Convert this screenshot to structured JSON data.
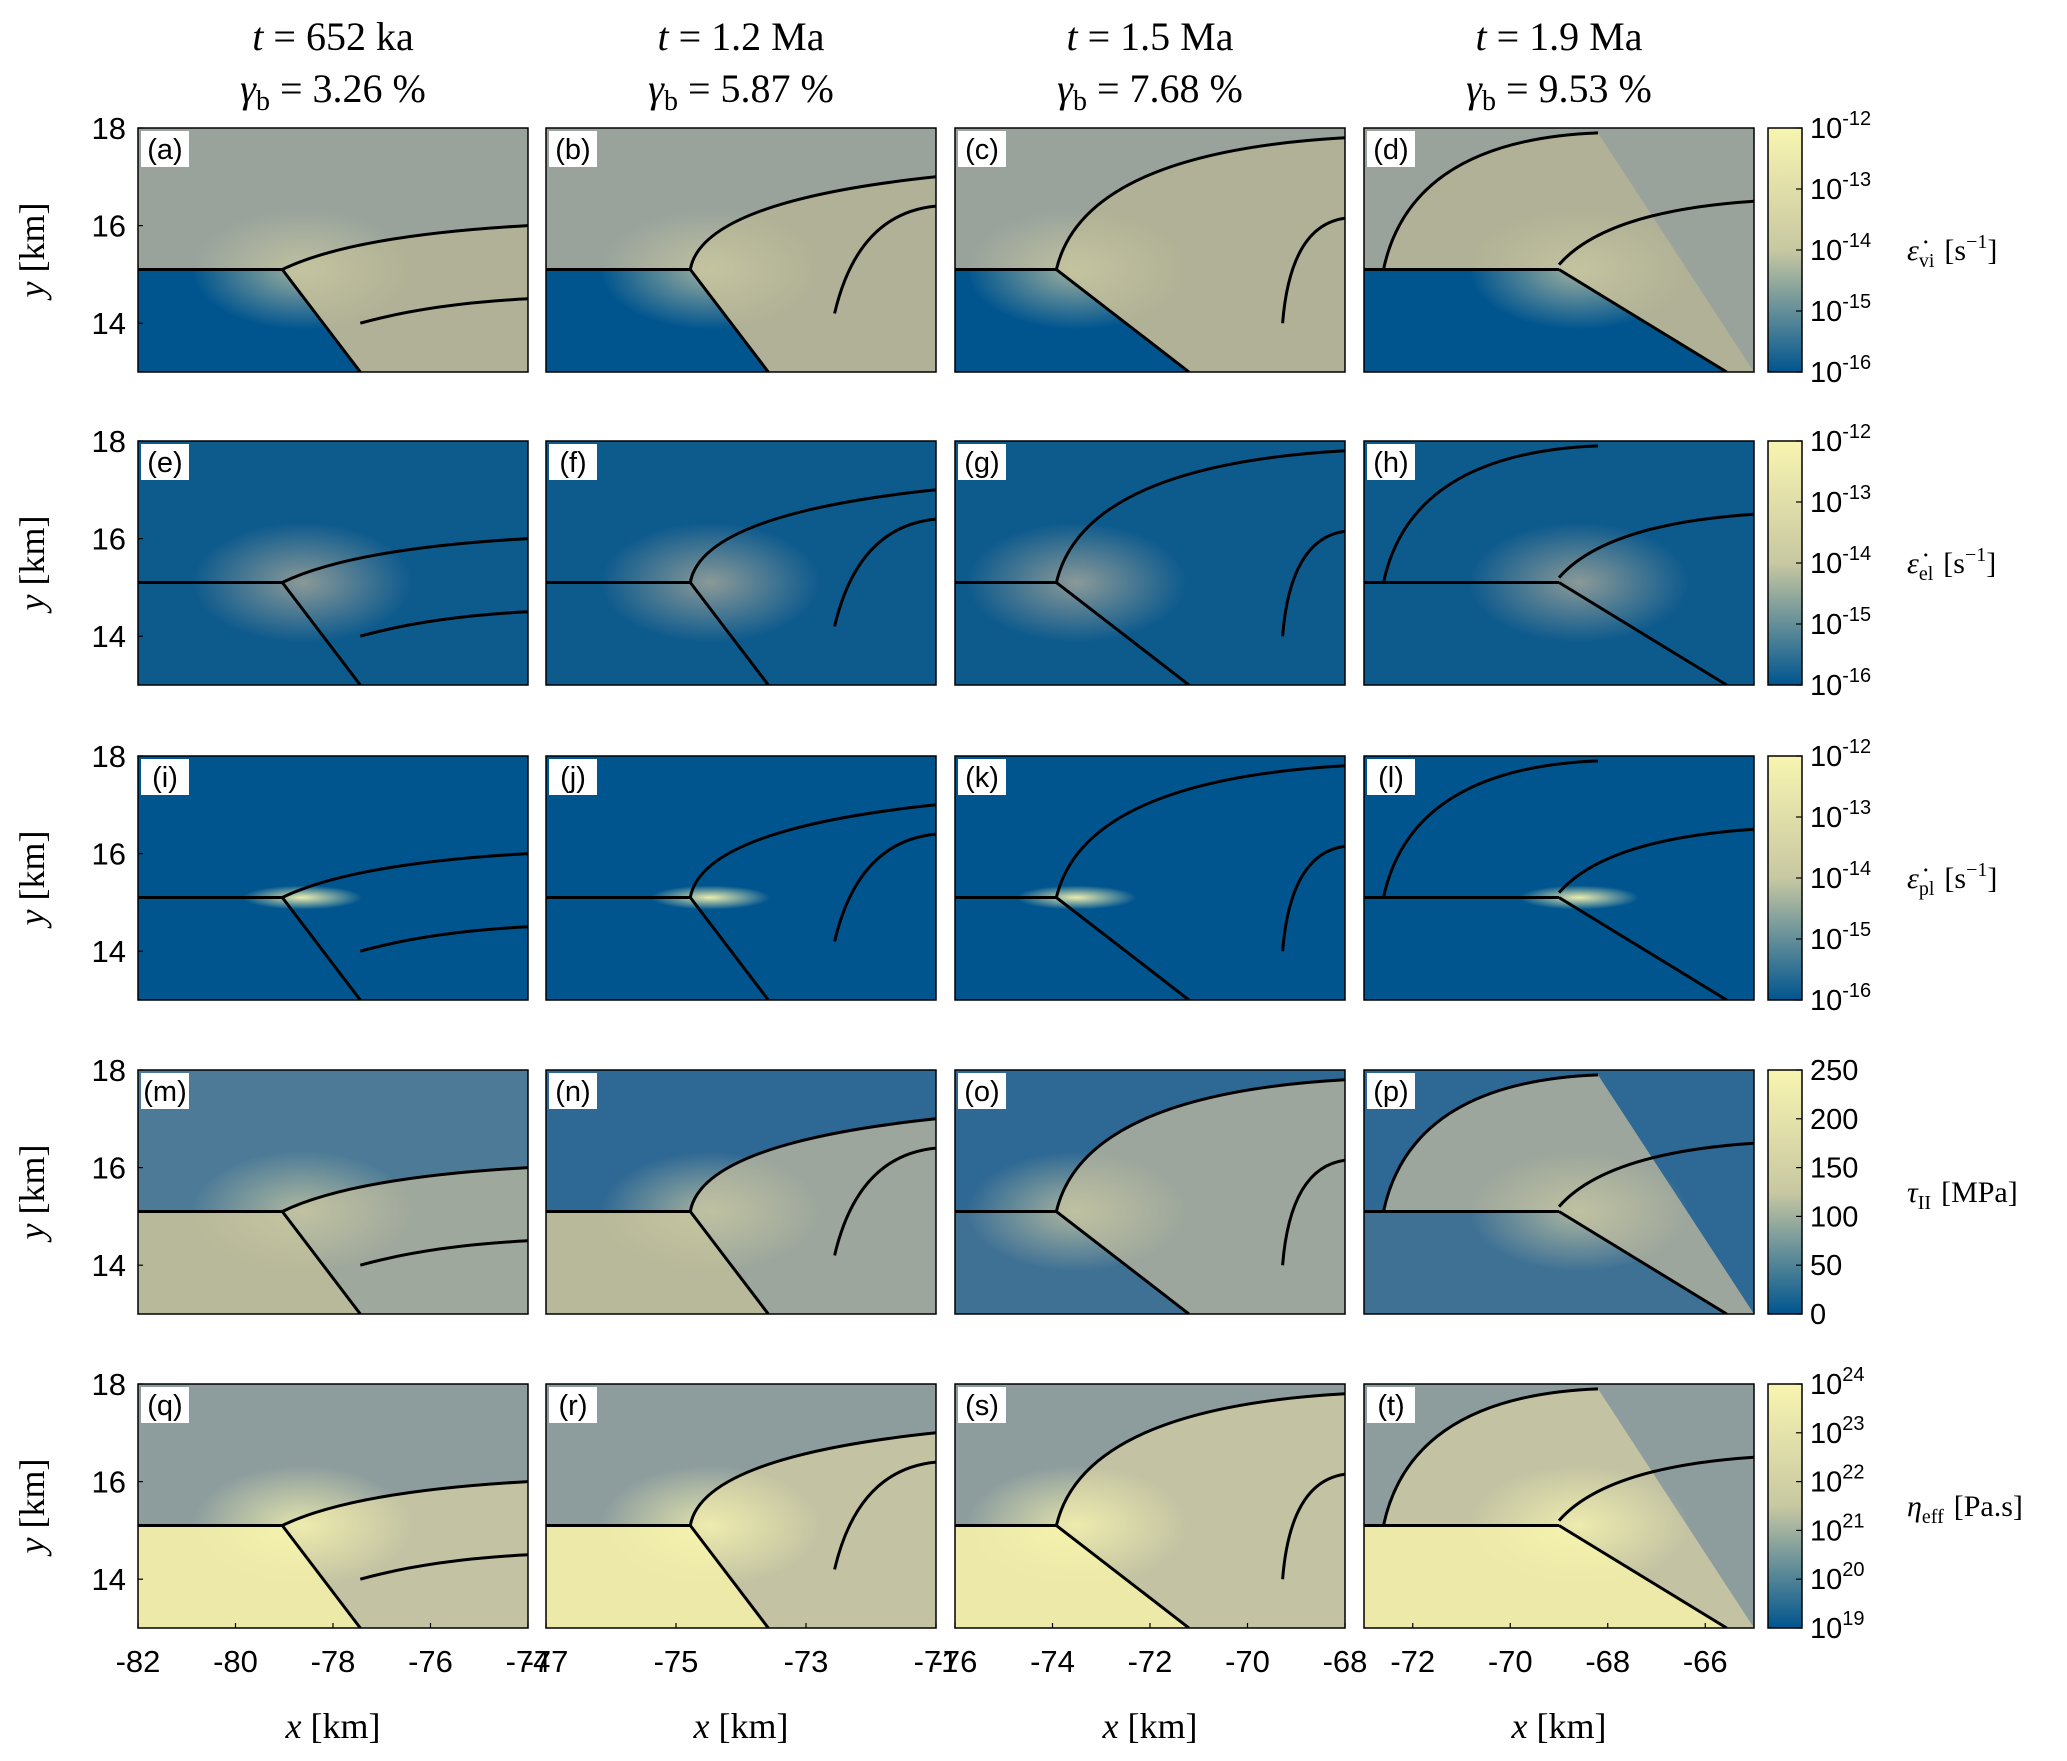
{
  "chart_data": {
    "type": "heatmap",
    "colormap": [
      "#00558f",
      "#c8c8a2",
      "#f8f5b0"
    ],
    "boundary_color": "#000000",
    "columns": [
      {
        "t_label": "t = 652 ka",
        "gamma_label": "γ",
        "gamma_sub": "b",
        "gamma_value": " = 3.26 %",
        "xlim": [
          -82,
          -74
        ],
        "xticks": [
          "-82",
          "-80",
          "-78",
          "-76",
          "-74"
        ],
        "xtick_values": [
          -82,
          -80,
          -78,
          -76,
          -74
        ]
      },
      {
        "t_label": "t = 1.2 Ma",
        "gamma_label": "γ",
        "gamma_sub": "b",
        "gamma_value": " = 5.87 %",
        "xlim": [
          -77,
          -71
        ],
        "xticks": [
          "-77",
          "-75",
          "-73",
          "-71"
        ],
        "xtick_values": [
          -77,
          -75,
          -73,
          -71
        ]
      },
      {
        "t_label": "t = 1.5 Ma",
        "gamma_label": "γ",
        "gamma_sub": "b",
        "gamma_value": " = 7.68 %",
        "xlim": [
          -76,
          -68
        ],
        "xticks": [
          "-76",
          "-74",
          "-72",
          "-70",
          "-68"
        ],
        "xtick_values": [
          -76,
          -74,
          -72,
          -70,
          -68
        ]
      },
      {
        "t_label": "t = 1.9 Ma",
        "gamma_label": "γ",
        "gamma_sub": "b",
        "gamma_value": " = 9.53 %",
        "xlim": [
          -73,
          -65
        ],
        "xticks": [
          "-72",
          "-70",
          "-68",
          "-66"
        ],
        "xtick_values": [
          -72,
          -70,
          -68,
          -66
        ]
      }
    ],
    "rows": [
      {
        "quantity": "ε̇",
        "sub": "vi",
        "unit": "[s",
        "unit_sup": "−1",
        "unit_end": "]",
        "scale": "log",
        "clim": [
          -16,
          -12
        ],
        "cticks": [
          {
            "base": "10",
            "exp": "-12",
            "v": -12
          },
          {
            "base": "10",
            "exp": "-13",
            "v": -13
          },
          {
            "base": "10",
            "exp": "-14",
            "v": -14
          },
          {
            "base": "10",
            "exp": "-15",
            "v": -15
          },
          {
            "base": "10",
            "exp": "-16",
            "v": -16
          }
        ]
      },
      {
        "quantity": "ε̇",
        "sub": "el",
        "unit": "[s",
        "unit_sup": "−1",
        "unit_end": "]",
        "scale": "log",
        "clim": [
          -16,
          -12
        ],
        "cticks": [
          {
            "base": "10",
            "exp": "-12",
            "v": -12
          },
          {
            "base": "10",
            "exp": "-13",
            "v": -13
          },
          {
            "base": "10",
            "exp": "-14",
            "v": -14
          },
          {
            "base": "10",
            "exp": "-15",
            "v": -15
          },
          {
            "base": "10",
            "exp": "-16",
            "v": -16
          }
        ]
      },
      {
        "quantity": "ε̇",
        "sub": "pl",
        "unit": "[s",
        "unit_sup": "−1",
        "unit_end": "]",
        "scale": "log",
        "clim": [
          -16,
          -12
        ],
        "cticks": [
          {
            "base": "10",
            "exp": "-12",
            "v": -12
          },
          {
            "base": "10",
            "exp": "-13",
            "v": -13
          },
          {
            "base": "10",
            "exp": "-14",
            "v": -14
          },
          {
            "base": "10",
            "exp": "-15",
            "v": -15
          },
          {
            "base": "10",
            "exp": "-16",
            "v": -16
          }
        ]
      },
      {
        "quantity": "τ",
        "sub": "II",
        "unit": "[MPa]",
        "unit_sup": "",
        "unit_end": "",
        "scale": "linear",
        "clim": [
          0,
          250
        ],
        "cticks": [
          {
            "base": "250",
            "exp": "",
            "v": 250
          },
          {
            "base": "200",
            "exp": "",
            "v": 200
          },
          {
            "base": "150",
            "exp": "",
            "v": 150
          },
          {
            "base": "100",
            "exp": "",
            "v": 100
          },
          {
            "base": "50",
            "exp": "",
            "v": 50
          },
          {
            "base": "0",
            "exp": "",
            "v": 0
          }
        ]
      },
      {
        "quantity": "η",
        "sub": "eff",
        "unit": "[Pa.s]",
        "unit_sup": "",
        "unit_end": "",
        "scale": "log",
        "clim": [
          19,
          24
        ],
        "cticks": [
          {
            "base": "10",
            "exp": "24",
            "v": 24
          },
          {
            "base": "10",
            "exp": "23",
            "v": 23
          },
          {
            "base": "10",
            "exp": "22",
            "v": 22
          },
          {
            "base": "10",
            "exp": "21",
            "v": 21
          },
          {
            "base": "10",
            "exp": "20",
            "v": 20
          },
          {
            "base": "10",
            "exp": "19",
            "v": 19
          }
        ]
      }
    ],
    "panel_labels": [
      "(a)",
      "(b)",
      "(c)",
      "(d)",
      "(e)",
      "(f)",
      "(g)",
      "(h)",
      "(i)",
      "(j)",
      "(k)",
      "(l)",
      "(m)",
      "(n)",
      "(o)",
      "(p)",
      "(q)",
      "(r)",
      "(s)",
      "(t)"
    ],
    "ylim": [
      13,
      18
    ],
    "yticks": [
      "18",
      "16",
      "14"
    ],
    "ytick_values": [
      18,
      16,
      14
    ],
    "ylabel": {
      "var": "y",
      "unit": " [km]"
    },
    "xlabel": {
      "var": "x",
      "unit": " [km]"
    }
  }
}
